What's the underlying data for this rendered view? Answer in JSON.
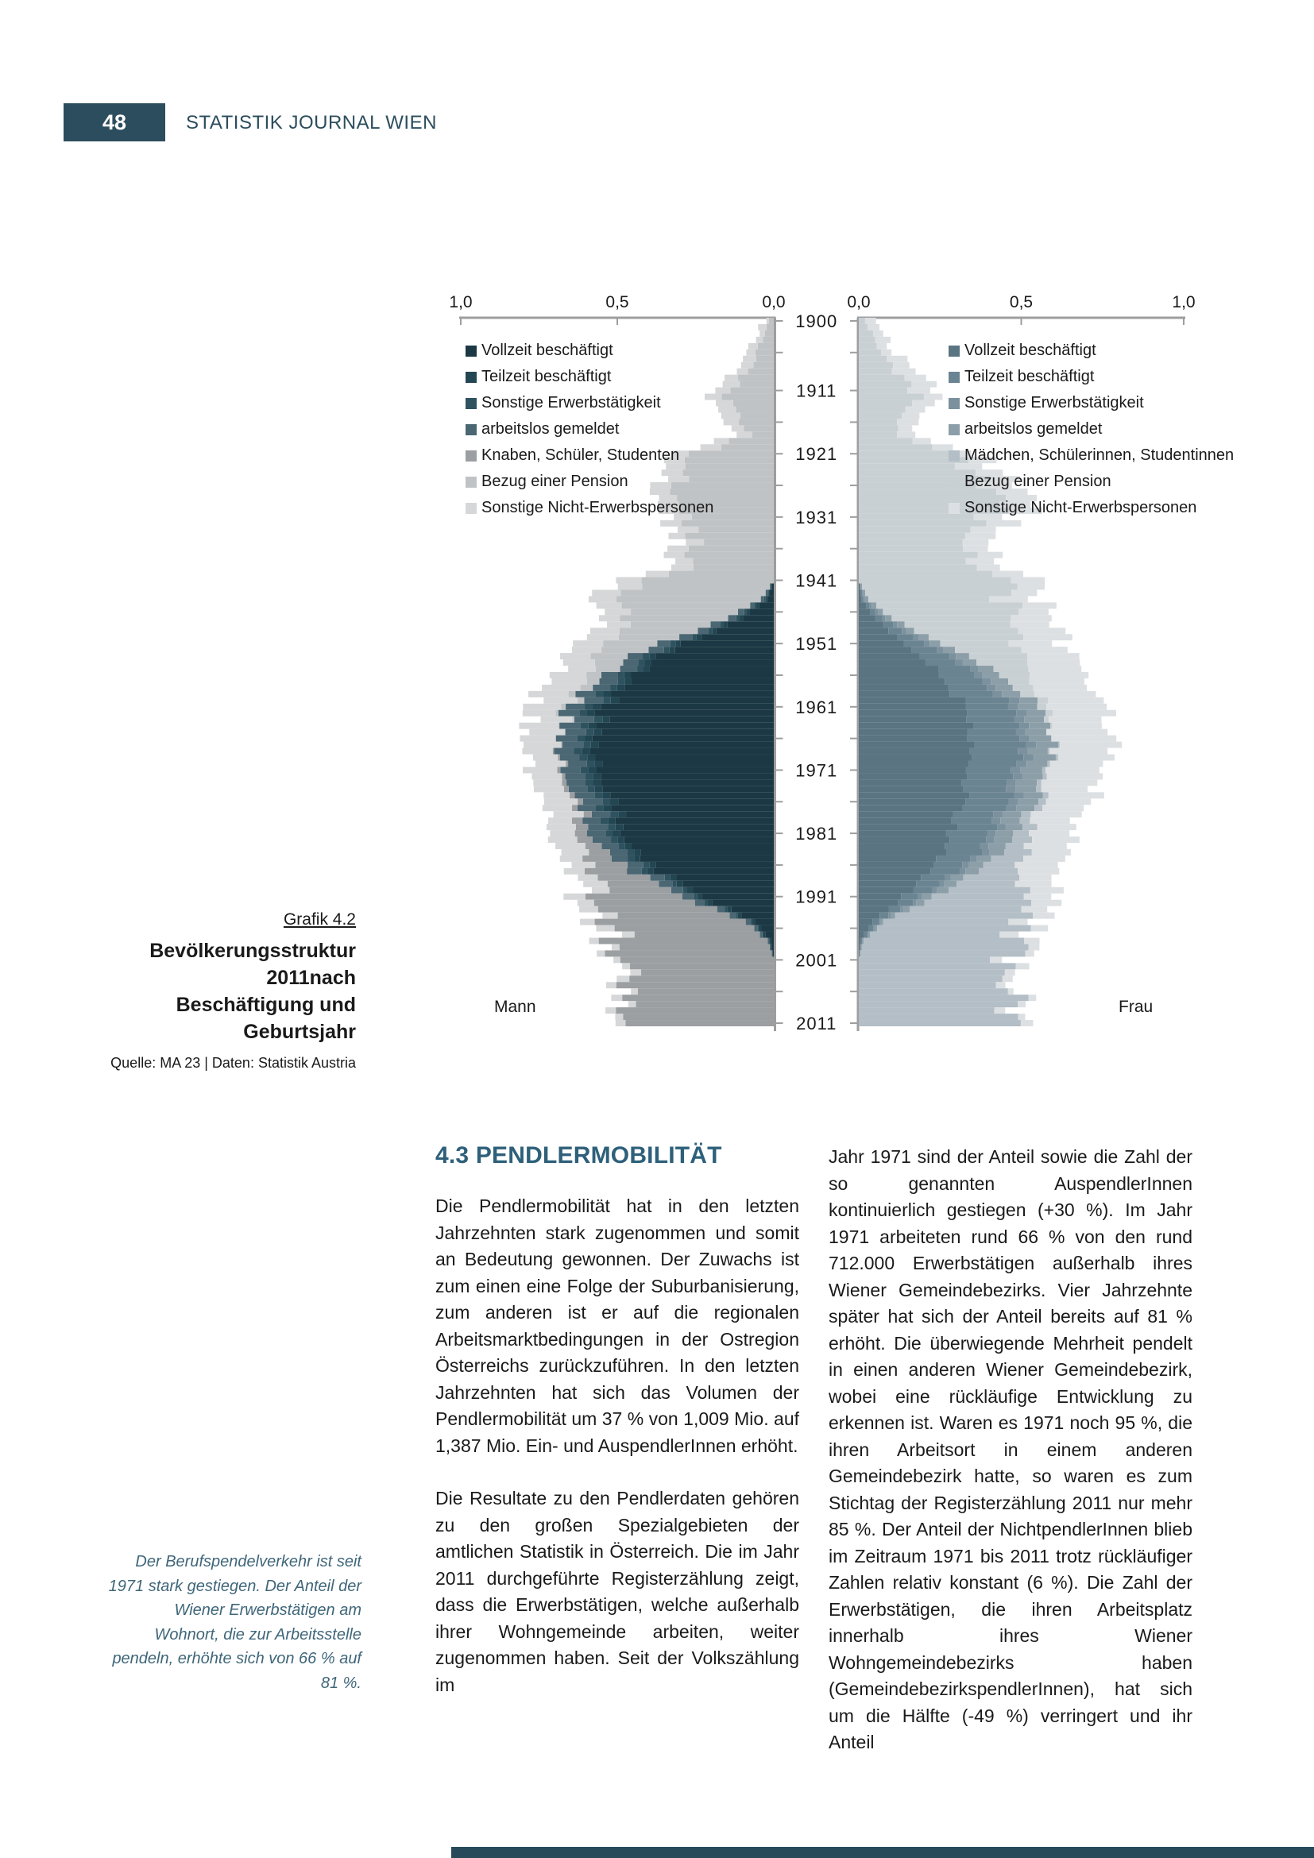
{
  "header": {
    "page_number": "48",
    "journal_title": "STATISTIK JOURNAL WIEN"
  },
  "figure": {
    "caption": {
      "label": "Grafik 4.2",
      "title_line1": "Bevölkerungsstruktur 2011nach",
      "title_line2": "Beschäftigung und Geburtsjahr",
      "source": "Quelle: MA 23 | Daten: Statistik Austria"
    },
    "left_side_label": "Mann",
    "right_side_label": "Frau",
    "legend_male": [
      {
        "label": "Vollzeit beschäftigt",
        "color": "#1b3844"
      },
      {
        "label": "Teilzeit beschäftigt",
        "color": "#234653"
      },
      {
        "label": "Sonstige Erwerbstätigkeit",
        "color": "#2f525f"
      },
      {
        "label": "arbeitslos gemeldet",
        "color": "#4a6773"
      },
      {
        "label": "Knaben, Schüler, Studenten",
        "color": "#9b9fa2"
      },
      {
        "label": "Bezug einer Pension",
        "color": "#c0c3c5"
      },
      {
        "label": "Sonstige Nicht-Erwerbspersonen",
        "color": "#d6d7d8"
      }
    ],
    "legend_female": [
      {
        "label": "Vollzeit beschäftigt",
        "color": "#5a7482"
      },
      {
        "label": "Teilzeit beschäftigt",
        "color": "#6b8492"
      },
      {
        "label": "Sonstige Erwerbstätigkeit",
        "color": "#7b919e"
      },
      {
        "label": "arbeitslos gemeldet",
        "color": "#8c9fa9"
      },
      {
        "label": "Mädchen, Schülerinnen, Studentinnen",
        "color": "#b3bec6"
      },
      {
        "label": "Bezug einer Pension",
        "color": "#c9d0d4"
      },
      {
        "label": "Sonstige Nicht-Erwerbspersonen",
        "color": "#dde0e2"
      }
    ]
  },
  "chart_data": {
    "type": "bar",
    "subtype": "population-pyramid-stacked",
    "title": "Bevölkerungsstruktur 2011 nach Beschäftigung und Geburtsjahr",
    "x_axis": {
      "min": 0.0,
      "max": 1.0,
      "tick_labels_left": [
        "1,0",
        "0,5",
        "0,0"
      ],
      "tick_labels_right": [
        "0,0",
        "0,5",
        "1,0"
      ]
    },
    "y_axis": {
      "min_year": 1900,
      "max_year": 2011,
      "labeled_years": [
        1900,
        1911,
        1921,
        1931,
        1941,
        1951,
        1961,
        1971,
        1981,
        1991,
        2001,
        2011
      ],
      "tick_years": [
        1900,
        1905,
        1911,
        1916,
        1921,
        1926,
        1931,
        1936,
        1941,
        1946,
        1951,
        1956,
        1961,
        1966,
        1971,
        1976,
        1981,
        1986,
        1991,
        1996,
        2001,
        2006,
        2011
      ]
    },
    "categories": [
      "Vollzeit beschäftigt",
      "Teilzeit beschäftigt",
      "Sonstige Erwerbstätigkeit",
      "arbeitslos gemeldet",
      "Knaben/Mädchen, Schüler/innen, Student/innen",
      "Bezug einer Pension",
      "Sonstige Nicht-Erwerbspersonen"
    ],
    "control_years": [
      1900,
      1906,
      1912,
      1915,
      1918,
      1921,
      1924,
      1927,
      1930,
      1933,
      1936,
      1939,
      1941,
      1944,
      1947,
      1950,
      1953,
      1956,
      1959,
      1962,
      1965,
      1968,
      1971,
      1974,
      1977,
      1980,
      1983,
      1986,
      1989,
      1992,
      1995,
      1998,
      2001,
      2004,
      2007,
      2011
    ],
    "series": [
      {
        "name": "Mann",
        "values": [
          [
            0,
            0,
            0,
            0,
            0,
            0.015,
            0.015
          ],
          [
            0,
            0,
            0,
            0,
            0,
            0.06,
            0.04
          ],
          [
            0,
            0,
            0,
            0,
            0,
            0.15,
            0.05
          ],
          [
            0,
            0,
            0,
            0,
            0,
            0.12,
            0.05
          ],
          [
            0,
            0,
            0,
            0,
            0,
            0.08,
            0.04
          ],
          [
            0,
            0,
            0,
            0,
            0,
            0.24,
            0.06
          ],
          [
            0,
            0,
            0,
            0,
            0,
            0.3,
            0.07
          ],
          [
            0,
            0,
            0,
            0,
            0,
            0.31,
            0.07
          ],
          [
            0,
            0,
            0,
            0,
            0,
            0.3,
            0.07
          ],
          [
            0,
            0,
            0,
            0,
            0,
            0.26,
            0.06
          ],
          [
            0,
            0,
            0,
            0,
            0,
            0.24,
            0.06
          ],
          [
            0,
            0,
            0,
            0,
            0,
            0.28,
            0.06
          ],
          [
            0,
            0,
            0,
            0,
            0,
            0.38,
            0.07
          ],
          [
            0.02,
            0.005,
            0.005,
            0.01,
            0,
            0.42,
            0.08
          ],
          [
            0.1,
            0.01,
            0.01,
            0.025,
            0,
            0.33,
            0.08
          ],
          [
            0.24,
            0.015,
            0.015,
            0.04,
            0,
            0.2,
            0.09
          ],
          [
            0.36,
            0.02,
            0.02,
            0.05,
            0,
            0.11,
            0.1
          ],
          [
            0.45,
            0.02,
            0.02,
            0.055,
            0,
            0.055,
            0.105
          ],
          [
            0.51,
            0.025,
            0.025,
            0.06,
            0,
            0.025,
            0.11
          ],
          [
            0.55,
            0.025,
            0.025,
            0.065,
            0,
            0.01,
            0.11
          ],
          [
            0.575,
            0.025,
            0.025,
            0.065,
            0,
            0,
            0.11
          ],
          [
            0.585,
            0.025,
            0.025,
            0.065,
            0.005,
            0,
            0.105
          ],
          [
            0.575,
            0.025,
            0.025,
            0.065,
            0.01,
            0,
            0.1
          ],
          [
            0.545,
            0.025,
            0.025,
            0.06,
            0.015,
            0,
            0.095
          ],
          [
            0.515,
            0.025,
            0.025,
            0.06,
            0.02,
            0,
            0.09
          ],
          [
            0.49,
            0.025,
            0.025,
            0.06,
            0.035,
            0,
            0.085
          ],
          [
            0.45,
            0.02,
            0.02,
            0.055,
            0.06,
            0,
            0.08
          ],
          [
            0.39,
            0.02,
            0.02,
            0.05,
            0.105,
            0,
            0.075
          ],
          [
            0.305,
            0.02,
            0.015,
            0.045,
            0.185,
            0,
            0.07
          ],
          [
            0.185,
            0.015,
            0.01,
            0.03,
            0.315,
            0,
            0.06
          ],
          [
            0.06,
            0.01,
            0.005,
            0.015,
            0.43,
            0,
            0.05
          ],
          [
            0.01,
            0.005,
            0,
            0.005,
            0.48,
            0,
            0.04
          ],
          [
            0,
            0,
            0,
            0,
            0.475,
            0,
            0.035
          ],
          [
            0,
            0,
            0,
            0,
            0.455,
            0,
            0.03
          ],
          [
            0,
            0,
            0,
            0,
            0.47,
            0,
            0.03
          ],
          [
            0,
            0,
            0,
            0,
            0.52,
            0,
            0.03
          ]
        ]
      },
      {
        "name": "Frau",
        "values": [
          [
            0,
            0,
            0,
            0,
            0,
            0.02,
            0.03
          ],
          [
            0,
            0,
            0,
            0,
            0,
            0.08,
            0.05
          ],
          [
            0,
            0,
            0,
            0,
            0,
            0.18,
            0.07
          ],
          [
            0,
            0,
            0,
            0,
            0,
            0.15,
            0.06
          ],
          [
            0,
            0,
            0,
            0,
            0,
            0.11,
            0.05
          ],
          [
            0,
            0,
            0,
            0,
            0,
            0.28,
            0.08
          ],
          [
            0,
            0,
            0,
            0,
            0,
            0.36,
            0.09
          ],
          [
            0,
            0,
            0,
            0,
            0,
            0.42,
            0.1
          ],
          [
            0,
            0,
            0,
            0,
            0,
            0.42,
            0.1
          ],
          [
            0,
            0,
            0,
            0,
            0,
            0.37,
            0.09
          ],
          [
            0,
            0,
            0,
            0,
            0,
            0.33,
            0.08
          ],
          [
            0,
            0,
            0,
            0,
            0,
            0.37,
            0.08
          ],
          [
            0,
            0,
            0,
            0,
            0,
            0.42,
            0.09
          ],
          [
            0.01,
            0.005,
            0.005,
            0.01,
            0,
            0.42,
            0.1
          ],
          [
            0.05,
            0.02,
            0.01,
            0.02,
            0,
            0.38,
            0.11
          ],
          [
            0.12,
            0.05,
            0.015,
            0.03,
            0,
            0.28,
            0.13
          ],
          [
            0.2,
            0.09,
            0.02,
            0.04,
            0,
            0.17,
            0.15
          ],
          [
            0.26,
            0.115,
            0.025,
            0.05,
            0,
            0.09,
            0.16
          ],
          [
            0.3,
            0.13,
            0.03,
            0.055,
            0,
            0.045,
            0.17
          ],
          [
            0.33,
            0.145,
            0.03,
            0.06,
            0,
            0.02,
            0.175
          ],
          [
            0.345,
            0.15,
            0.03,
            0.065,
            0,
            0,
            0.18
          ],
          [
            0.345,
            0.15,
            0.03,
            0.065,
            0.005,
            0,
            0.175
          ],
          [
            0.34,
            0.145,
            0.03,
            0.065,
            0.01,
            0,
            0.17
          ],
          [
            0.325,
            0.14,
            0.03,
            0.06,
            0.015,
            0,
            0.16
          ],
          [
            0.31,
            0.135,
            0.03,
            0.06,
            0.025,
            0,
            0.15
          ],
          [
            0.295,
            0.125,
            0.025,
            0.055,
            0.04,
            0,
            0.14
          ],
          [
            0.27,
            0.11,
            0.025,
            0.05,
            0.065,
            0,
            0.13
          ],
          [
            0.235,
            0.095,
            0.02,
            0.045,
            0.11,
            0,
            0.12
          ],
          [
            0.185,
            0.07,
            0.015,
            0.04,
            0.19,
            0,
            0.11
          ],
          [
            0.115,
            0.045,
            0.01,
            0.025,
            0.3,
            0,
            0.09
          ],
          [
            0.04,
            0.02,
            0.005,
            0.01,
            0.41,
            0,
            0.06
          ],
          [
            0.005,
            0.005,
            0,
            0.005,
            0.46,
            0,
            0.045
          ],
          [
            0,
            0,
            0,
            0,
            0.465,
            0,
            0.035
          ],
          [
            0,
            0,
            0,
            0,
            0.45,
            0,
            0.03
          ],
          [
            0,
            0,
            0,
            0,
            0.465,
            0,
            0.03
          ],
          [
            0,
            0,
            0,
            0,
            0.5,
            0,
            0.03
          ]
        ]
      }
    ],
    "colors_male": [
      "#1b3844",
      "#234653",
      "#2f525f",
      "#4a6773",
      "#9b9fa2",
      "#c0c3c5",
      "#d6d7d8"
    ],
    "colors_female": [
      "#5a7482",
      "#6b8492",
      "#7b919e",
      "#8c9fa9",
      "#b3bec6",
      "#c9d0d4",
      "#dde0e2"
    ],
    "axis_color": "#9e9e9e",
    "legend_position": "top-inside"
  },
  "sections": {
    "heading": "4.3 PENDLERMOBILITÄT",
    "col_left_p1": "Die Pendlermobilität hat in den letzten Jahrzehnten stark zugenommen und somit an Bedeutung gewonnen. Der Zuwachs ist zum einen eine Folge der Suburbanisierung, zum anderen ist er auf die regionalen Arbeitsmarktbedingungen in der Ostregion Österreichs zurückzuführen. In den letzten Jahrzehnten hat sich das Volumen der Pendlermobilität um 37 % von 1,009 Mio. auf 1,387 Mio. Ein- und AuspendlerInnen erhöht.",
    "col_left_p2": "Die Resultate zu den Pendlerdaten gehören zu den großen Spezialgebieten der amtlichen Statistik in Österreich. Die im Jahr 2011 durchgeführte Registerzählung zeigt, dass die Erwerbstätigen, welche außerhalb ihrer Wohngemeinde arbeiten, weiter zugenommen haben. Seit der Volkszählung im",
    "col_right_p1": "Jahr 1971 sind der Anteil sowie die Zahl der so genannten AuspendlerInnen kontinuierlich gestiegen (+30 %). Im Jahr 1971 arbeiteten rund 66 % von den rund 712.000 Erwerbstätigen außerhalb ihres Wiener Gemeindebezirks. Vier Jahrzehnte später hat sich der Anteil bereits auf 81 % erhöht. Die überwiegende Mehrheit pendelt in einen anderen Wiener Gemeindebezirk, wobei eine rückläufige Entwicklung zu erkennen ist. Waren es 1971 noch 95 %, die ihren Arbeitsort in einem anderen Gemeindebezirk hatte, so waren es zum Stichtag der Registerzählung 2011 nur mehr 85 %. Der Anteil der NichtpendlerInnen blieb im Zeitraum 1971 bis 2011 trotz rückläufiger Zahlen relativ konstant (6 %). Die Zahl der Erwerbstätigen, die ihren Arbeitsplatz innerhalb ihres Wiener Wohngemeindebezirks haben (GemeindebezirkspendlerInnen), hat sich um die Hälfte (-49 %) verringert und ihr Anteil",
    "margin_note": "Der Berufspendelverkehr ist seit 1971 stark gestiegen. Der Anteil der Wiener Erwerbstätigen am Wohnort, die zur Arbeitsstelle pendeln, erhöhte sich von 66 % auf 81 %."
  },
  "colors": {
    "accent": "#2c4d5d",
    "heading": "#2e607a",
    "note_text": "#3f6679",
    "body_text": "#1a1a1a"
  }
}
